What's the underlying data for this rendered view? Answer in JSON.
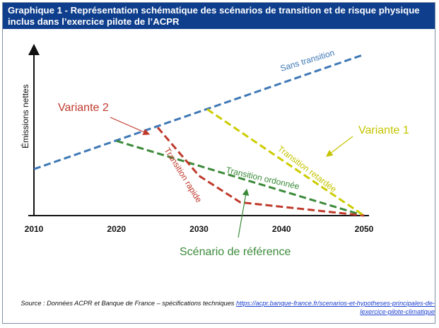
{
  "header": {
    "title": "Graphique 1 - Représentation schématique des scénarios de transition et de risque physique inclus dans l’exercice pilote de l’ACPR"
  },
  "chart_data": {
    "type": "line",
    "xlabel": "",
    "ylabel": "Émissions nettes",
    "xlim": [
      2010,
      2050
    ],
    "ylim": [
      0,
      100
    ],
    "x_ticks": [
      "2010",
      "2020",
      "2030",
      "2040",
      "2050"
    ],
    "series": [
      {
        "name": "Sans transition",
        "color": "#3e78b5",
        "x": [
          2010,
          2050
        ],
        "y": [
          28,
          97
        ]
      },
      {
        "name": "Transition ordonnée",
        "color": "#3b8a3a",
        "x": [
          2020,
          2050
        ],
        "y": [
          45,
          0
        ]
      },
      {
        "name": "Transition rapide",
        "color": "#c0392b",
        "x": [
          2025,
          2030,
          2035,
          2050
        ],
        "y": [
          53,
          24,
          8,
          0
        ]
      },
      {
        "name": "Transition retardée",
        "color": "#cccc00",
        "x": [
          2031,
          2050
        ],
        "y": [
          64,
          0
        ]
      }
    ],
    "annotations": [
      {
        "text": "Variante 2",
        "color": "#c0392b"
      },
      {
        "text": "Variante 1",
        "color": "#c4c400"
      },
      {
        "text": "Scénario de référence",
        "color": "#3b8a3a"
      }
    ]
  },
  "source": {
    "prefix": "Source : Données ACPR et Banque de France – spécifications techniques ",
    "link": "https://acpr.banque-france.fr/scenarios-et-hypotheses-principales-de-lexercice-pilote-climatique"
  }
}
